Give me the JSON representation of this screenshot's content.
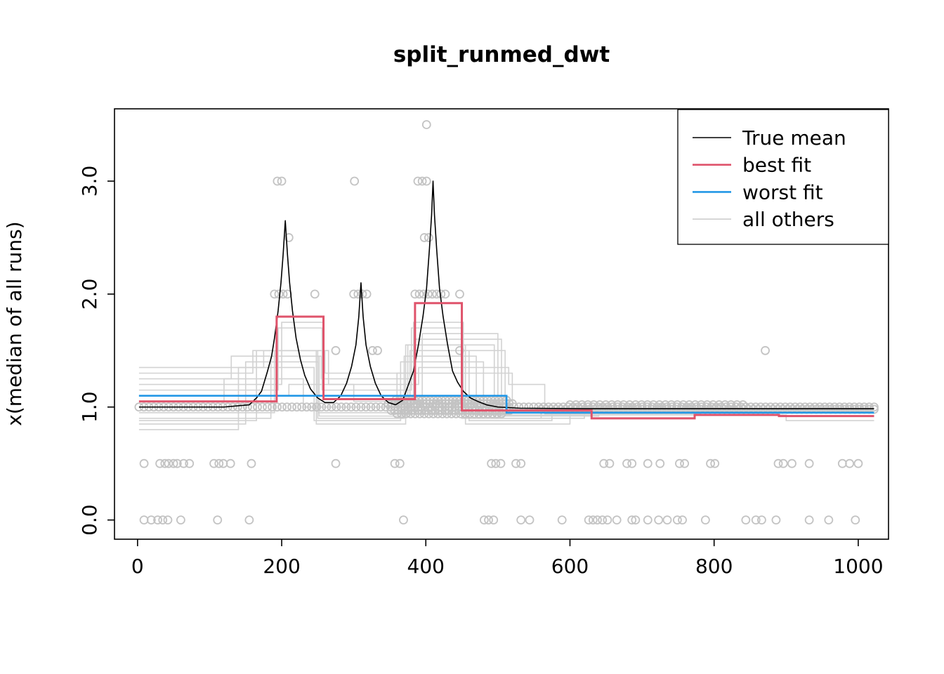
{
  "title": "split_runmed_dwt",
  "chart_data": {
    "type": "line",
    "title": "split_runmed_dwt",
    "xlabel": "",
    "ylabel": "x(median of all runs)",
    "xlim": [
      -32,
      1042
    ],
    "ylim": [
      -0.17,
      3.64
    ],
    "x_ticks": [
      0,
      200,
      400,
      600,
      800,
      1000
    ],
    "x_tick_labels": [
      "0",
      "200",
      "400",
      "600",
      "800",
      "1000"
    ],
    "y_ticks": [
      0,
      1,
      2,
      3
    ],
    "y_tick_labels": [
      "0.0",
      "1.0",
      "2.0",
      "3.0"
    ],
    "grid": false,
    "legend": {
      "position": "topright",
      "entries": [
        {
          "label": "True mean",
          "color": "#000000",
          "width": 1.6
        },
        {
          "label": "best fit",
          "color": "#DF536B",
          "width": 2.6
        },
        {
          "label": "worst fit",
          "color": "#2297E6",
          "width": 2.6
        },
        {
          "label": "all others",
          "color": "#CDCDCD",
          "width": 1.6
        }
      ]
    },
    "true_mean": {
      "name": "True mean",
      "color": "#000000",
      "width": 1.6,
      "points": [
        [
          2,
          1.0
        ],
        [
          60,
          1.0
        ],
        [
          120,
          1.0
        ],
        [
          155,
          1.02
        ],
        [
          165,
          1.08
        ],
        [
          172,
          1.14
        ],
        [
          180,
          1.31
        ],
        [
          186,
          1.45
        ],
        [
          190,
          1.61
        ],
        [
          195,
          1.85
        ],
        [
          199,
          2.1
        ],
        [
          202,
          2.35
        ],
        [
          205,
          2.65
        ],
        [
          208,
          2.35
        ],
        [
          211,
          2.1
        ],
        [
          215,
          1.85
        ],
        [
          220,
          1.61
        ],
        [
          226,
          1.42
        ],
        [
          232,
          1.28
        ],
        [
          240,
          1.16
        ],
        [
          250,
          1.08
        ],
        [
          260,
          1.04
        ],
        [
          272,
          1.04
        ],
        [
          282,
          1.1
        ],
        [
          290,
          1.21
        ],
        [
          297,
          1.36
        ],
        [
          303,
          1.55
        ],
        [
          307,
          1.8
        ],
        [
          310,
          2.1
        ],
        [
          313,
          1.8
        ],
        [
          317,
          1.55
        ],
        [
          323,
          1.36
        ],
        [
          330,
          1.21
        ],
        [
          338,
          1.1
        ],
        [
          348,
          1.04
        ],
        [
          358,
          1.02
        ],
        [
          368,
          1.06
        ],
        [
          376,
          1.2
        ],
        [
          383,
          1.32
        ],
        [
          390,
          1.56
        ],
        [
          396,
          1.8
        ],
        [
          401,
          2.05
        ],
        [
          405,
          2.4
        ],
        [
          408,
          2.7
        ],
        [
          410,
          3.0
        ],
        [
          412,
          2.7
        ],
        [
          415,
          2.4
        ],
        [
          419,
          2.05
        ],
        [
          424,
          1.8
        ],
        [
          430,
          1.56
        ],
        [
          437,
          1.32
        ],
        [
          444,
          1.22
        ],
        [
          452,
          1.14
        ],
        [
          462,
          1.08
        ],
        [
          472,
          1.05
        ],
        [
          484,
          1.02
        ],
        [
          500,
          1.0
        ],
        [
          530,
          0.99
        ],
        [
          620,
          0.985
        ],
        [
          760,
          0.985
        ],
        [
          900,
          0.985
        ],
        [
          1022,
          0.985
        ]
      ]
    },
    "best_fit": {
      "name": "best fit",
      "color": "#DF536B",
      "width": 3,
      "segments": [
        [
          2,
          193,
          1.05
        ],
        [
          193,
          258,
          1.8
        ],
        [
          258,
          385,
          1.07
        ],
        [
          385,
          450,
          1.92
        ],
        [
          450,
          630,
          0.97
        ],
        [
          630,
          773,
          0.9
        ],
        [
          773,
          890,
          0.93
        ],
        [
          890,
          1022,
          0.92
        ]
      ]
    },
    "worst_fit": {
      "name": "worst fit",
      "color": "#2297E6",
      "width": 2.6,
      "segments": [
        [
          2,
          512,
          1.1
        ],
        [
          512,
          1022,
          0.95
        ]
      ]
    },
    "all_others": {
      "name": "all others",
      "color": "#D2D2D2",
      "width": 1.6,
      "series": [
        {
          "segments": [
            [
              2,
              160,
              1.3
            ],
            [
              160,
              260,
              1.5
            ],
            [
              260,
              380,
              1.3
            ],
            [
              380,
              510,
              1.5
            ],
            [
              510,
              1020,
              0.97
            ]
          ]
        },
        {
          "segments": [
            [
              2,
              130,
              1.25
            ],
            [
              130,
              255,
              1.45
            ],
            [
              255,
              385,
              1.25
            ],
            [
              385,
              505,
              1.6
            ],
            [
              505,
              1020,
              0.96
            ]
          ]
        },
        {
          "segments": [
            [
              2,
              200,
              1.2
            ],
            [
              200,
              258,
              1.75
            ],
            [
              258,
              383,
              1.1
            ],
            [
              383,
              452,
              1.75
            ],
            [
              452,
              640,
              0.95
            ],
            [
              640,
              1020,
              0.97
            ]
          ]
        },
        {
          "segments": [
            [
              2,
              195,
              1.15
            ],
            [
              195,
              256,
              1.7
            ],
            [
              256,
              380,
              1.15
            ],
            [
              380,
              450,
              1.7
            ],
            [
              450,
              560,
              0.9
            ],
            [
              560,
              1020,
              0.98
            ]
          ]
        },
        {
          "segments": [
            [
              2,
              190,
              0.95
            ],
            [
              190,
              250,
              1.5
            ],
            [
              250,
              375,
              0.95
            ],
            [
              375,
              455,
              1.55
            ],
            [
              455,
              600,
              0.85
            ],
            [
              600,
              1020,
              0.96
            ]
          ]
        },
        {
          "segments": [
            [
              2,
              185,
              0.9
            ],
            [
              185,
              252,
              1.45
            ],
            [
              252,
              378,
              0.92
            ],
            [
              378,
              460,
              1.5
            ],
            [
              460,
              575,
              0.88
            ],
            [
              575,
              1020,
              0.99
            ]
          ]
        },
        {
          "segments": [
            [
              2,
              150,
              0.85
            ],
            [
              150,
              250,
              1.4
            ],
            [
              250,
              370,
              0.9
            ],
            [
              370,
              470,
              1.45
            ],
            [
              470,
              900,
              0.93
            ],
            [
              900,
              1022,
              0.88
            ]
          ]
        },
        {
          "segments": [
            [
              2,
              140,
              0.8
            ],
            [
              140,
              245,
              1.35
            ],
            [
              245,
              365,
              0.88
            ],
            [
              365,
              480,
              1.4
            ],
            [
              480,
              1020,
              0.95
            ]
          ]
        },
        {
          "segments": [
            [
              2,
              210,
              1.1
            ],
            [
              210,
              300,
              1.2
            ],
            [
              300,
              395,
              1.05
            ],
            [
              395,
              500,
              1.65
            ],
            [
              500,
              640,
              0.92
            ],
            [
              640,
              1020,
              0.97
            ]
          ]
        },
        {
          "segments": [
            [
              2,
              175,
              1.35
            ],
            [
              175,
              265,
              1.5
            ],
            [
              265,
              390,
              1.2
            ],
            [
              390,
              515,
              1.35
            ],
            [
              515,
              565,
              1.2
            ],
            [
              565,
              780,
              0.94
            ],
            [
              780,
              1020,
              0.96
            ]
          ]
        },
        {
          "segments": [
            [
              2,
              120,
              1.05
            ],
            [
              120,
              230,
              1.25
            ],
            [
              230,
              360,
              1.0
            ],
            [
              360,
              520,
              1.3
            ],
            [
              520,
              1020,
              0.98
            ]
          ]
        },
        {
          "segments": [
            [
              2,
              165,
              0.88
            ],
            [
              165,
              248,
              1.5
            ],
            [
              248,
              372,
              0.85
            ],
            [
              372,
              495,
              1.55
            ],
            [
              495,
              620,
              0.9
            ],
            [
              620,
              1020,
              0.97
            ]
          ]
        }
      ]
    },
    "scatter": {
      "color": "#C3C3C3",
      "radius": 5.5,
      "rows": [
        {
          "y": 0.0,
          "xs": [
            9,
            19,
            28,
            35,
            42,
            60,
            111,
            155,
            369,
            481,
            487,
            494,
            532,
            544,
            589,
            626,
            632,
            638,
            645,
            652,
            665,
            686,
            691,
            708,
            723,
            735,
            749,
            756,
            788,
            844,
            858,
            866,
            886,
            932,
            959,
            996
          ]
        },
        {
          "y": 0.5,
          "xs": [
            9,
            31,
            38,
            43,
            50,
            55,
            64,
            72,
            106,
            113,
            119,
            129,
            158,
            275,
            357,
            364,
            491,
            497,
            504,
            525,
            532,
            647,
            655,
            679,
            686,
            708,
            725,
            752,
            759,
            795,
            801,
            889,
            896,
            908,
            932,
            978,
            988,
            1000
          ]
        },
        {
          "y": 1.0,
          "span": [
            2,
            1022,
            150
          ]
        },
        {
          "y": 1.03,
          "span": [
            348,
            520,
            40
          ]
        },
        {
          "y": 0.97,
          "span": [
            352,
            516,
            36
          ]
        },
        {
          "y": 1.06,
          "span": [
            358,
            512,
            30
          ]
        },
        {
          "y": 0.94,
          "span": [
            360,
            505,
            24
          ]
        },
        {
          "y": 0.98,
          "span": [
            560,
            1022,
            70
          ]
        },
        {
          "y": 1.02,
          "span": [
            600,
            840,
            30
          ]
        },
        {
          "y": 1.5,
          "xs": [
            275,
            326,
            333,
            447,
            871
          ]
        },
        {
          "y": 2.0,
          "xs": [
            190,
            196,
            202,
            208,
            246,
            300,
            306,
            312,
            318,
            385,
            391,
            397,
            403,
            409,
            415,
            421,
            427,
            447
          ]
        },
        {
          "y": 2.5,
          "xs": [
            210,
            398,
            404
          ]
        },
        {
          "y": 3.0,
          "xs": [
            194,
            200,
            301,
            389,
            395,
            401
          ]
        },
        {
          "y": 3.5,
          "xs": [
            401
          ]
        }
      ]
    }
  }
}
